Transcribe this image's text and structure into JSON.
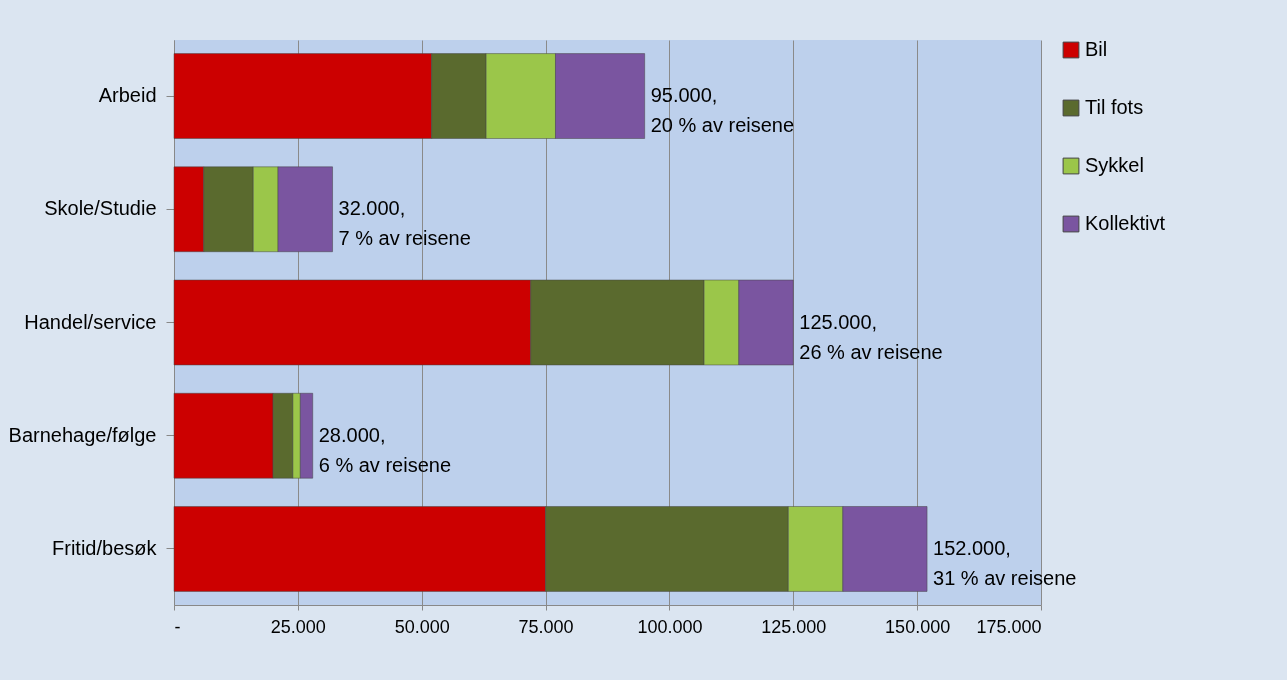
{
  "chart_data": {
    "type": "bar",
    "orientation": "horizontal",
    "stacked": true,
    "categories": [
      "Arbeid",
      "Skole/Studie",
      "Handel/service",
      "Barnehage/følge",
      "Fritid/besøk"
    ],
    "series": [
      {
        "name": "Bil",
        "color": "#cc0000",
        "values": [
          52000,
          6000,
          72000,
          20000,
          75000
        ]
      },
      {
        "name": "Til fots",
        "color": "#5a6a2e",
        "values": [
          11000,
          10000,
          35000,
          4000,
          49000
        ]
      },
      {
        "name": "Sykkel",
        "color": "#9bc64a",
        "values": [
          14000,
          5000,
          7000,
          1500,
          11000
        ]
      },
      {
        "name": "Kollektivt",
        "color": "#7a55a0",
        "values": [
          18000,
          11000,
          11000,
          2500,
          17000
        ]
      }
    ],
    "xlim": [
      0,
      175000
    ],
    "xticks": [
      {
        "value": 0,
        "label": "-"
      },
      {
        "value": 25000,
        "label": "25.000"
      },
      {
        "value": 50000,
        "label": "50.000"
      },
      {
        "value": 75000,
        "label": "75.000"
      },
      {
        "value": 100000,
        "label": "100.000"
      },
      {
        "value": 125000,
        "label": "125.000"
      },
      {
        "value": 150000,
        "label": "150.000"
      },
      {
        "value": 175000,
        "label": "175.000"
      }
    ],
    "grid": "x",
    "legend": "right",
    "annotations": [
      {
        "text": "95.000,\n20 % av reisene",
        "x": 95000,
        "y": "Arbeid"
      },
      {
        "text": "32.000,\n7 % av reisene",
        "x": 32000,
        "y": "Skole/Studie"
      },
      {
        "text": "125.000,\n26 % av reisene",
        "x": 125000,
        "y": "Handel/service"
      },
      {
        "text": "28.000,\n6 % av reisene",
        "x": 28000,
        "y": "Barnehage/følge"
      },
      {
        "text": "152.000,\n31 % av reisene",
        "x": 152000,
        "y": "Fritid/besøk"
      }
    ]
  }
}
